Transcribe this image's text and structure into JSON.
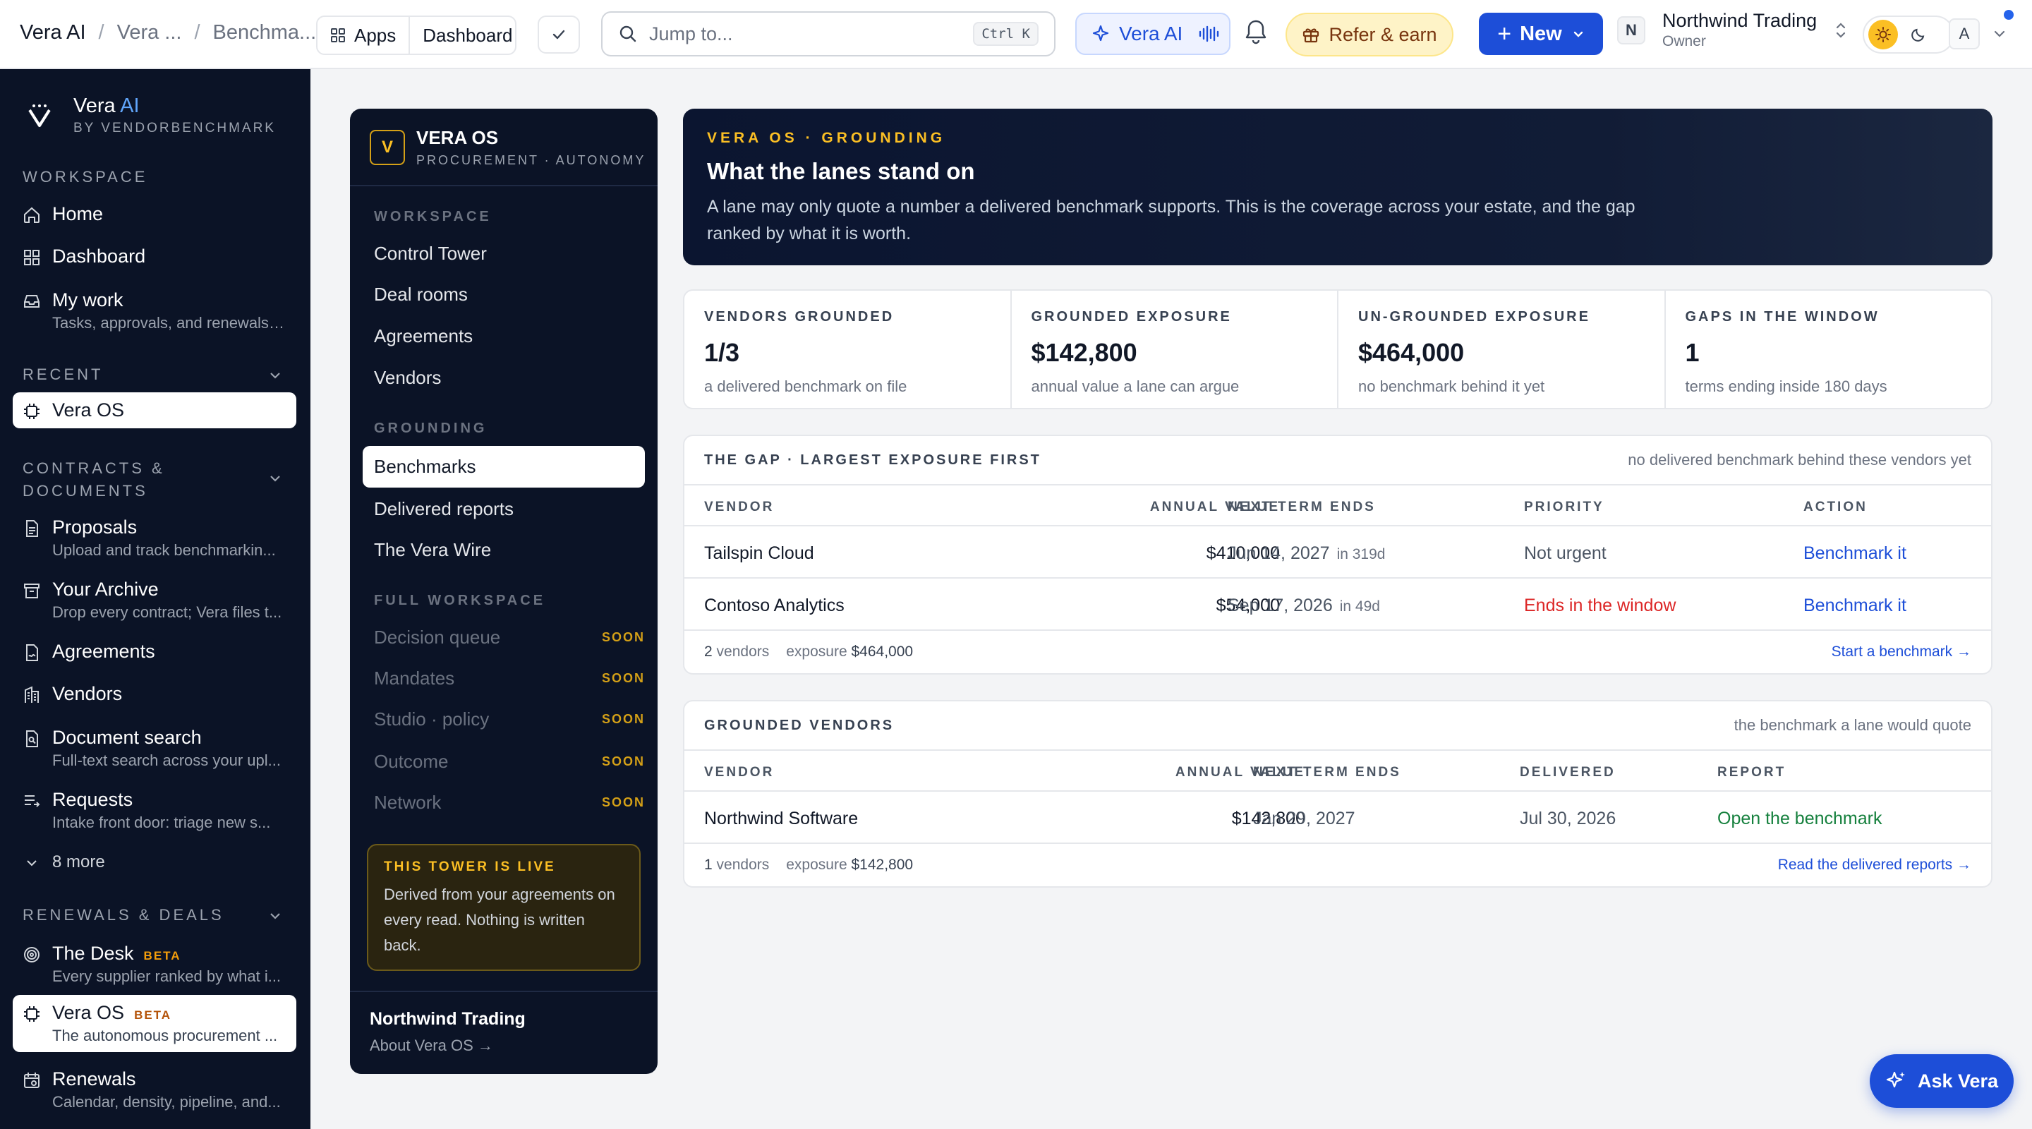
{
  "breadcrumbs": [
    "Vera AI",
    "Vera ...",
    "Benchma..."
  ],
  "toolbar": {
    "apps_label": "Apps",
    "dashboard_label": "Dashboard",
    "search_placeholder": "Jump to...",
    "search_shortcut": "Ctrl K",
    "vera_ai_label": "Vera AI",
    "refer_label": "Refer & earn",
    "new_label": "New",
    "org_initial": "N",
    "org_name": "Northwind Trading",
    "org_role": "Owner",
    "user_initial": "A"
  },
  "sidebar": {
    "brand_name": "Vera",
    "brand_ai": "AI",
    "brand_sub": "BY VENDORBENCHMARK",
    "workspace_label": "WORKSPACE",
    "workspace_items": [
      {
        "label": "Home",
        "icon": "home-icon"
      },
      {
        "label": "Dashboard",
        "icon": "grid-icon"
      },
      {
        "label": "My work",
        "sub": "Tasks, approvals, and renewals ...",
        "icon": "inbox-icon"
      }
    ],
    "recent_label": "RECENT",
    "recent_items": [
      {
        "label": "Vera OS",
        "icon": "chip-icon"
      }
    ],
    "contracts_label_1": "CONTRACTS &",
    "contracts_label_2": "DOCUMENTS",
    "contracts_items": [
      {
        "label": "Proposals",
        "sub": "Upload and track benchmarkin...",
        "icon": "document-icon"
      },
      {
        "label": "Your Archive",
        "sub": "Drop every contract; Vera files t...",
        "icon": "archive-icon"
      },
      {
        "label": "Agreements",
        "icon": "file-sign-icon"
      },
      {
        "label": "Vendors",
        "icon": "building-icon"
      },
      {
        "label": "Document search",
        "sub": "Full-text search across your upl...",
        "icon": "file-search-icon"
      },
      {
        "label": "Requests",
        "sub": "Intake front door: triage new s...",
        "icon": "list-arrow-icon"
      }
    ],
    "more_label": "8 more",
    "renewals_label": "RENEWALS & DEALS",
    "renewals_items": [
      {
        "label": "The Desk",
        "badge": "BETA",
        "sub": "Every supplier ranked by what i...",
        "icon": "target-icon"
      },
      {
        "label": "Vera OS",
        "badge": "BETA",
        "sub": "The autonomous procurement ...",
        "icon": "chip-icon"
      },
      {
        "label": "Renewals",
        "sub": "Calendar, density, pipeline, and...",
        "icon": "calendar-icon"
      }
    ]
  },
  "vera_panel": {
    "logo_letter": "V",
    "title": "VERA OS",
    "subtitle": "PROCUREMENT · AUTONOMY",
    "workspace_label": "WORKSPACE",
    "workspace_items": [
      "Control Tower",
      "Deal rooms",
      "Agreements",
      "Vendors"
    ],
    "grounding_label": "GROUNDING",
    "grounding_items": [
      "Benchmarks",
      "Delivered reports",
      "The Vera Wire"
    ],
    "full_label": "FULL WORKSPACE",
    "full_items": [
      "Decision queue",
      "Mandates",
      "Studio · policy",
      "Outcome",
      "Network"
    ],
    "soon_label": "SOON",
    "live_title": "THIS TOWER IS LIVE",
    "live_body": "Derived from your agreements on every read. Nothing is written back.",
    "footer_org": "Northwind Trading",
    "footer_link": "About Vera OS →"
  },
  "hero": {
    "kicker": "VERA OS · GROUNDING",
    "title": "What the lanes stand on",
    "desc": "A lane may only quote a number a delivered benchmark supports. This is the coverage across your estate, and the gap ranked by what it is worth."
  },
  "kpis": [
    {
      "label": "VENDORS GROUNDED",
      "value": "1/3",
      "sub": "a delivered benchmark on file"
    },
    {
      "label": "GROUNDED EXPOSURE",
      "value": "$142,800",
      "sub": "annual value a lane can argue"
    },
    {
      "label": "UN-GROUNDED EXPOSURE",
      "value": "$464,000",
      "sub": "no benchmark behind it yet"
    },
    {
      "label": "GAPS IN THE WINDOW",
      "value": "1",
      "sub": "terms ending inside 180 days"
    }
  ],
  "gap": {
    "title": "THE GAP · LARGEST EXPOSURE FIRST",
    "note": "no delivered benchmark behind these vendors yet",
    "columns": [
      "VENDOR",
      "ANNUAL VALUE",
      "NEXT TERM ENDS",
      "PRIORITY",
      "ACTION"
    ],
    "rows": [
      {
        "vendor": "Tailspin Cloud",
        "value": "$410,000",
        "ends": "Jun 14, 2027",
        "in": "in 319d",
        "priority": "Not urgent",
        "action": "Benchmark it"
      },
      {
        "vendor": "Contoso Analytics",
        "value": "$54,000",
        "ends": "Sep 17, 2026",
        "in": "in 49d",
        "priority": "Ends in the window",
        "action": "Benchmark it"
      }
    ],
    "count": "2",
    "count_label": "vendors",
    "exposure_label": "exposure",
    "exposure": "$464,000",
    "link": "Start a benchmark →"
  },
  "grounded": {
    "title": "GROUNDED VENDORS",
    "note": "the benchmark a lane would quote",
    "columns": [
      "VENDOR",
      "ANNUAL VALUE",
      "NEXT TERM ENDS",
      "DELIVERED",
      "REPORT"
    ],
    "rows": [
      {
        "vendor": "Northwind Software",
        "value": "$142,800",
        "ends": "Jan 29, 2027",
        "delivered": "Jul 30, 2026",
        "report": "Open the benchmark"
      }
    ],
    "count": "1",
    "count_label": "vendors",
    "exposure_label": "exposure",
    "exposure": "$142,800",
    "link": "Read the delivered reports →"
  },
  "ask_label": "Ask Vera",
  "colors": {
    "accent": "#1d4ed8",
    "navy": "#0b1326",
    "gold": "#fbbf24",
    "danger": "#dc2626",
    "success": "#15803d"
  }
}
